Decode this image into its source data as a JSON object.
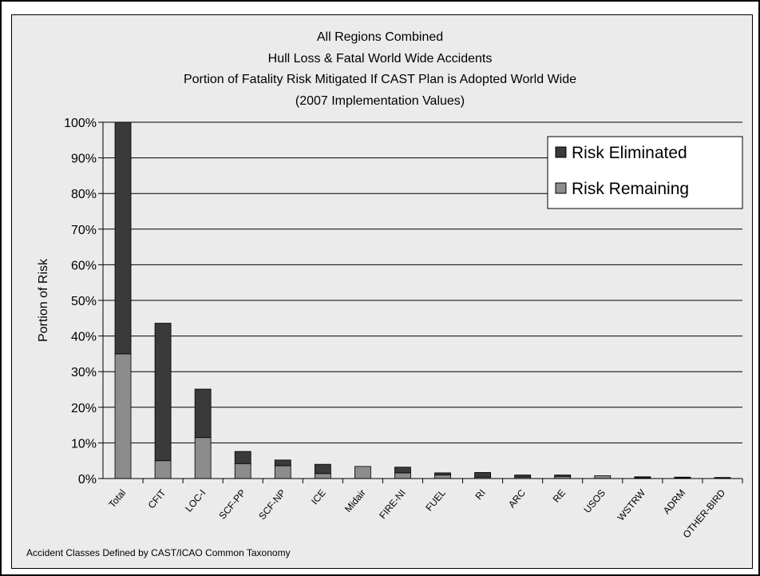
{
  "chart_data": {
    "type": "bar",
    "stacked": true,
    "title_lines": [
      "All Regions Combined",
      "Hull Loss & Fatal World Wide Accidents",
      "Portion of Fatality Risk Mitigated If  CAST  Plan is Adopted World Wide",
      "(2007 Implementation Values)"
    ],
    "ylabel": "Portion of Risk",
    "ylim": [
      0,
      100
    ],
    "yticks": [
      "0%",
      "10%",
      "20%",
      "30%",
      "40%",
      "50%",
      "60%",
      "70%",
      "80%",
      "90%",
      "100%"
    ],
    "grid": true,
    "legend_position": "top-right",
    "categories": [
      "Total",
      "CFIT",
      "LOC-I",
      "SCF-PP",
      "SCF-NP",
      "ICE",
      "Midair",
      "FIRE-NI",
      "FUEL",
      "RI",
      "ARC",
      "RE",
      "USOS",
      "WSTRW",
      "ADRM",
      "OTHER-BIRD"
    ],
    "series": [
      {
        "name": "Risk Remaining",
        "color": "#8c8c8c",
        "values": [
          35.0,
          5.0,
          11.5,
          4.2,
          3.6,
          1.4,
          3.4,
          1.6,
          1.0,
          0.4,
          0.4,
          0.6,
          0.8,
          0.2,
          0.2,
          0.1
        ]
      },
      {
        "name": "Risk Eliminated",
        "color": "#3a3a3a",
        "values": [
          65.0,
          38.6,
          13.6,
          3.4,
          1.6,
          2.6,
          0.0,
          1.6,
          0.6,
          1.3,
          0.6,
          0.4,
          0.0,
          0.3,
          0.2,
          0.2
        ]
      }
    ],
    "footnote": "Accident Classes Defined by CAST/ICAO Common Taxonomy"
  }
}
